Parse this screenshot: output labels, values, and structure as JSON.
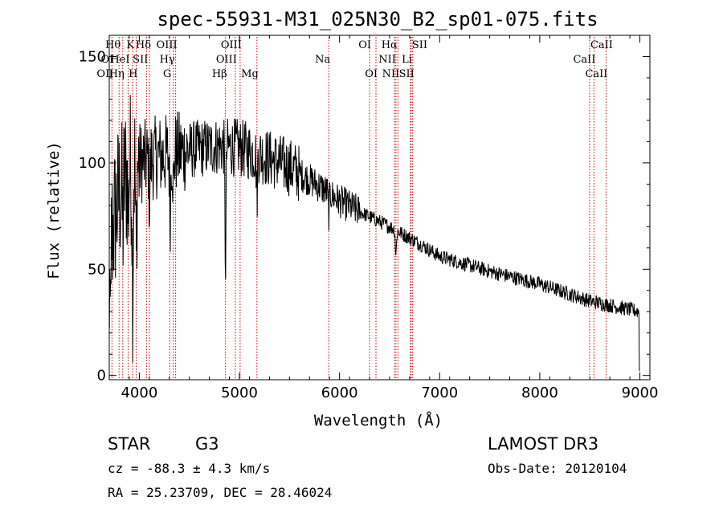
{
  "chart_data": {
    "type": "line",
    "title": "spec-55931-M31_025N30_B2_sp01-075.fits",
    "xlabel": "Wavelength (Å)",
    "ylabel": "Flux (relative)",
    "xlim": [
      3700,
      9100
    ],
    "ylim": [
      -2,
      160
    ],
    "xticks": [
      4000,
      5000,
      6000,
      7000,
      8000,
      9000
    ],
    "xtick_labels": [
      "4000",
      "5000",
      "6000",
      "7000",
      "8000",
      "9000"
    ],
    "yticks": [
      0,
      50,
      100,
      150
    ],
    "ytick_labels": [
      "0",
      "50",
      "100",
      "150"
    ],
    "grid": false,
    "line_color": "#000000",
    "marker_color": "#cc0000",
    "continuum": {
      "x": [
        3700,
        3800,
        3900,
        4000,
        4200,
        4500,
        4800,
        5000,
        5200,
        5500,
        5800,
        6000,
        6200,
        6500,
        6800,
        7000,
        7500,
        8000,
        8500,
        8800,
        9000
      ],
      "y": [
        60,
        85,
        98,
        100,
        103,
        106,
        108,
        107,
        104,
        98,
        89,
        82,
        77,
        70,
        62,
        56,
        49,
        43,
        35,
        32,
        30
      ]
    },
    "absorption_features": [
      {
        "x": 3934,
        "depth": 55
      },
      {
        "x": 3969,
        "depth": 50
      },
      {
        "x": 3889,
        "depth": 20
      },
      {
        "x": 3835,
        "depth": 20
      },
      {
        "x": 4102,
        "depth": 20
      },
      {
        "x": 4308,
        "depth": 28
      },
      {
        "x": 4341,
        "depth": 18
      },
      {
        "x": 4861,
        "depth": 55
      },
      {
        "x": 5175,
        "depth": 20
      },
      {
        "x": 5893,
        "depth": 10
      },
      {
        "x": 6563,
        "depth": 12
      }
    ],
    "spectral_lines": [
      {
        "label": "Hθ",
        "wave": 3798,
        "row": 0,
        "side": "left"
      },
      {
        "label": "K",
        "wave": 3934,
        "row": 0,
        "side": "left"
      },
      {
        "label": "Hδ",
        "wave": 4102,
        "row": 0,
        "side": "left"
      },
      {
        "label": "OIII",
        "wave": 4363,
        "row": 0,
        "side": "left"
      },
      {
        "label": "OIII",
        "wave": 5007,
        "row": 0,
        "side": "left"
      },
      {
        "label": "OI",
        "wave": 6300,
        "row": 0,
        "side": "left"
      },
      {
        "label": "Hα",
        "wave": 6563,
        "row": 0,
        "side": "left"
      },
      {
        "label": "SII",
        "wave": 6716,
        "row": 0,
        "side": "right"
      },
      {
        "label": "CaII",
        "wave": 8498,
        "row": 0,
        "side": "right"
      },
      {
        "label": "OI",
        "wave": 3727,
        "row": 1,
        "side": "left"
      },
      {
        "label": "HeI",
        "wave": 3889,
        "row": 1,
        "side": "left"
      },
      {
        "label": "SII",
        "wave": 4072,
        "row": 1,
        "side": "left"
      },
      {
        "label": "Hγ",
        "wave": 4340,
        "row": 1,
        "side": "left"
      },
      {
        "label": "OIII",
        "wave": 4959,
        "row": 1,
        "side": "left"
      },
      {
        "label": "Na",
        "wave": 5893,
        "row": 1,
        "side": "left"
      },
      {
        "label": "NII",
        "wave": 6548,
        "row": 1,
        "side": "left"
      },
      {
        "label": "Li",
        "wave": 6708,
        "row": 1,
        "side": "left"
      },
      {
        "label": "CaII",
        "wave": 8542,
        "row": 1,
        "side": "left"
      },
      {
        "label": "OII",
        "wave": 3727,
        "row": 2,
        "side": "left"
      },
      {
        "label": "Hη",
        "wave": 3835,
        "row": 2,
        "side": "left"
      },
      {
        "label": "H",
        "wave": 3969,
        "row": 2,
        "side": "left"
      },
      {
        "label": "G",
        "wave": 4305,
        "row": 2,
        "side": "left"
      },
      {
        "label": "Hβ",
        "wave": 4861,
        "row": 2,
        "side": "left"
      },
      {
        "label": "Mg",
        "wave": 5175,
        "row": 2,
        "side": "left"
      },
      {
        "label": "OI",
        "wave": 6364,
        "row": 2,
        "side": "left"
      },
      {
        "label": "NII",
        "wave": 6583,
        "row": 2,
        "side": "left"
      },
      {
        "label": "SII",
        "wave": 6731,
        "row": 2,
        "side": "left"
      },
      {
        "label": "CaII",
        "wave": 8662,
        "row": 2,
        "side": "left"
      }
    ]
  },
  "info": {
    "class_label": "STAR",
    "subclass_label": "G3",
    "redshift_text": "cz = -88.3 ± 4.3 km/s",
    "coords_text": "RA =  25.23709, DEC =  28.46024",
    "survey_text": "LAMOST DR3",
    "obs_date_text": "Obs-Date: 20120104"
  }
}
